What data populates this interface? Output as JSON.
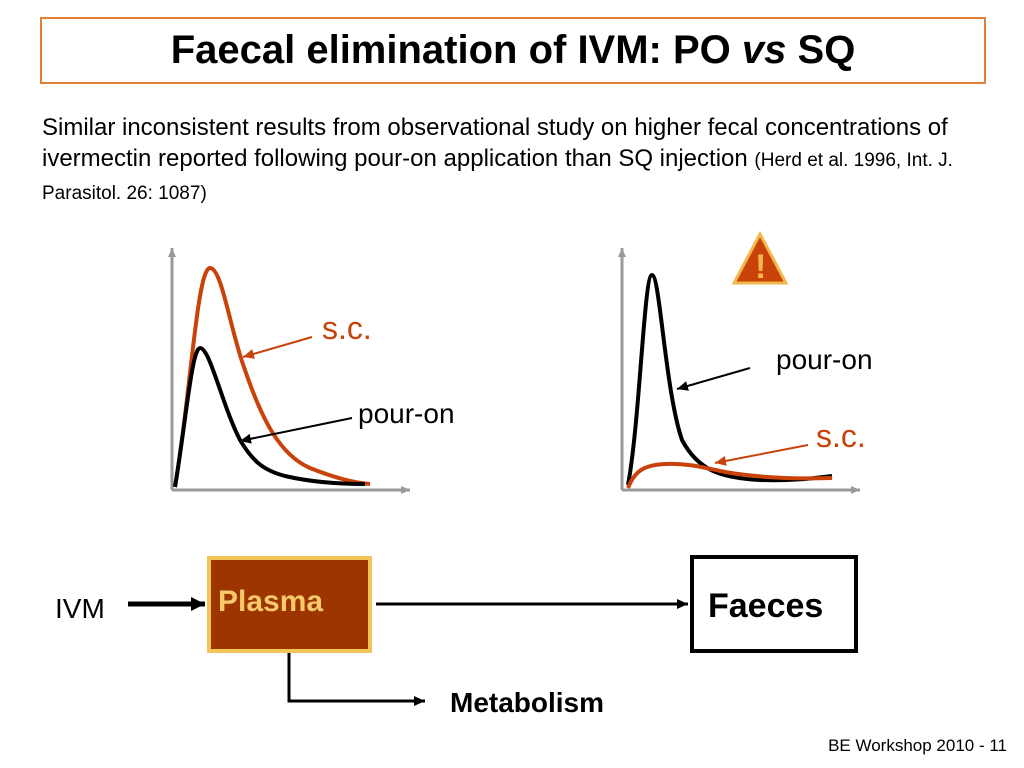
{
  "title": {
    "prefix": "Faecal elimination of IVM: PO ",
    "italic": "vs",
    "suffix": " SQ"
  },
  "intro": {
    "text": "Similar inconsistent results from observational study on higher fecal concentrations of ivermectin reported following pour-on application than SQ injection ",
    "reference": "(Herd et al. 1996, Int. J. Parasitol. 26: 1087)"
  },
  "chart_left": {
    "sc_label": "s.c.",
    "pouron_label": "pour-on"
  },
  "chart_right": {
    "pouron_label": "pour-on",
    "sc_label": "s.c.",
    "warning_symbol": "!"
  },
  "flow": {
    "input_label": "IVM",
    "plasma_label": "Plasma",
    "faeces_label": "Faeces",
    "metabolism_label": "Metabolism"
  },
  "footer": "BE Workshop 2010 - 11",
  "colors": {
    "accent_orange": "#e0803a",
    "sc_curve": "#c8420a",
    "pouron_curve": "#000000",
    "plasma_fill": "#9c3500",
    "plasma_border": "#f2c45a",
    "warning_fill": "#c8420a",
    "warning_border": "#f2b84b"
  },
  "icons": {
    "warning": "warning-triangle-icon"
  }
}
